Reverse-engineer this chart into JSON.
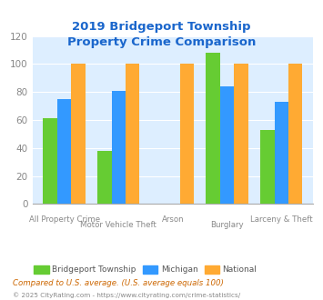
{
  "title": "2019 Bridgeport Township\nProperty Crime Comparison",
  "categories": [
    "All Property Crime",
    "Motor Vehicle Theft",
    "Arson",
    "Burglary",
    "Larceny & Theft"
  ],
  "bridgeport": [
    61,
    38,
    0,
    108,
    53
  ],
  "michigan": [
    75,
    81,
    0,
    84,
    73
  ],
  "national": [
    100,
    100,
    100,
    100,
    100
  ],
  "arson_bridgeport": 0,
  "arson_michigan": 0,
  "colors": {
    "bridgeport": "#66cc33",
    "michigan": "#3399ff",
    "national": "#ffaa33"
  },
  "ylim": [
    0,
    120
  ],
  "yticks": [
    0,
    20,
    40,
    60,
    80,
    100,
    120
  ],
  "legend_labels": [
    "Bridgeport Township",
    "Michigan",
    "National"
  ],
  "footnote1": "Compared to U.S. average. (U.S. average equals 100)",
  "footnote2": "© 2025 CityRating.com - https://www.cityrating.com/crime-statistics/",
  "title_color": "#1a66cc",
  "footnote1_color": "#cc6600",
  "footnote2_color": "#888888",
  "bg_color": "#ddeeff",
  "tick_label_color": "#888888"
}
